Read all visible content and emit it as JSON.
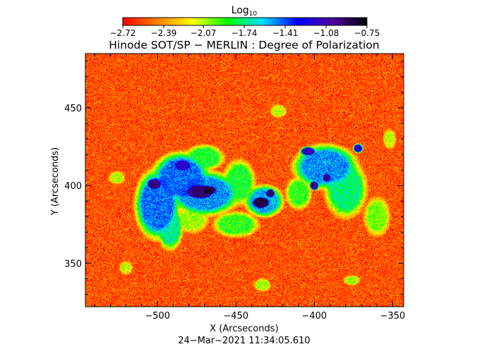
{
  "chart_data": {
    "type": "heatmap",
    "title": "Hinode SOT/SP − MERLIN : Degree of Polarization",
    "xlabel": "X (Arcseconds)",
    "ylabel": "Y (Arcseconds)",
    "xlim": [
      -546,
      -343
    ],
    "ylim": [
      322,
      485
    ],
    "x_ticks": [
      -500,
      -450,
      -400,
      -350
    ],
    "x_tick_labels": [
      "−500",
      "−450",
      "−400",
      "−350"
    ],
    "y_ticks": [
      350,
      400,
      450
    ],
    "y_tick_labels": [
      "350",
      "400",
      "450"
    ],
    "grid": false,
    "colorbar": {
      "label_main": "Log",
      "label_sub": "10",
      "range": [
        -2.72,
        -0.75
      ],
      "ticks": [
        -2.72,
        -2.39,
        -2.07,
        -1.74,
        -1.41,
        -1.08,
        -0.75
      ],
      "tick_labels": [
        "−2.72",
        "−2.39",
        "−2.07",
        "−1.74",
        "−1.41",
        "−1.08",
        "−0.75"
      ],
      "placement": "top",
      "colors": [
        "#ff0000",
        "#ff8000",
        "#ffff00",
        "#00ff00",
        "#00e0ff",
        "#0000ff",
        "#5000a0",
        "#000000"
      ]
    },
    "background_level": -2.55,
    "regions": [
      {
        "x": -502,
        "y": 401,
        "rx": 5,
        "ry": 4,
        "value": -1.0
      },
      {
        "x": -473,
        "y": 396,
        "rx": 10,
        "ry": 5,
        "value": -0.95
      },
      {
        "x": -467,
        "y": 397,
        "rx": 5,
        "ry": 3,
        "value": -0.85
      },
      {
        "x": -434,
        "y": 389,
        "rx": 6,
        "ry": 4,
        "value": -0.85
      },
      {
        "x": -428,
        "y": 395,
        "rx": 3,
        "ry": 3,
        "value": -0.95
      },
      {
        "x": -400,
        "y": 400,
        "rx": 3,
        "ry": 3,
        "value": -1.0
      },
      {
        "x": -392,
        "y": 405,
        "rx": 3,
        "ry": 3,
        "value": -1.05
      },
      {
        "x": -404,
        "y": 422,
        "rx": 5,
        "ry": 3,
        "value": -1.1
      },
      {
        "x": -484,
        "y": 413,
        "rx": 6,
        "ry": 4,
        "value": -1.15
      },
      {
        "x": -372,
        "y": 424,
        "rx": 3,
        "ry": 3,
        "value": -1.15
      },
      {
        "x": -500,
        "y": 388,
        "rx": 14,
        "ry": 22,
        "value": -1.45
      },
      {
        "x": -485,
        "y": 405,
        "rx": 18,
        "ry": 16,
        "value": -1.45
      },
      {
        "x": -470,
        "y": 395,
        "rx": 22,
        "ry": 14,
        "value": -1.5
      },
      {
        "x": -432,
        "y": 390,
        "rx": 12,
        "ry": 10,
        "value": -1.55
      },
      {
        "x": -393,
        "y": 412,
        "rx": 20,
        "ry": 14,
        "value": -1.5
      },
      {
        "x": -380,
        "y": 398,
        "rx": 13,
        "ry": 18,
        "value": -1.75
      },
      {
        "x": -492,
        "y": 373,
        "rx": 8,
        "ry": 14,
        "value": -1.7
      },
      {
        "x": -470,
        "y": 418,
        "rx": 12,
        "ry": 8,
        "value": -1.85
      },
      {
        "x": -448,
        "y": 402,
        "rx": 10,
        "ry": 14,
        "value": -1.85
      },
      {
        "x": -450,
        "y": 375,
        "rx": 14,
        "ry": 8,
        "value": -1.9
      },
      {
        "x": -410,
        "y": 395,
        "rx": 8,
        "ry": 10,
        "value": -1.9
      },
      {
        "x": -478,
        "y": 378,
        "rx": 10,
        "ry": 8,
        "value": -2.05
      },
      {
        "x": -360,
        "y": 380,
        "rx": 8,
        "ry": 12,
        "value": -2.0
      },
      {
        "x": -433,
        "y": 336,
        "rx": 5,
        "ry": 4,
        "value": -2.05
      },
      {
        "x": -376,
        "y": 339,
        "rx": 5,
        "ry": 3,
        "value": -2.05
      },
      {
        "x": -526,
        "y": 405,
        "rx": 5,
        "ry": 4,
        "value": -2.1
      },
      {
        "x": -520,
        "y": 347,
        "rx": 4,
        "ry": 4,
        "value": -2.1
      },
      {
        "x": -423,
        "y": 448,
        "rx": 5,
        "ry": 4,
        "value": -2.1
      },
      {
        "x": -352,
        "y": 430,
        "rx": 4,
        "ry": 6,
        "value": -2.1
      }
    ]
  },
  "footer": {
    "timestamp": "24−Mar−2021 11:34:05.610"
  }
}
